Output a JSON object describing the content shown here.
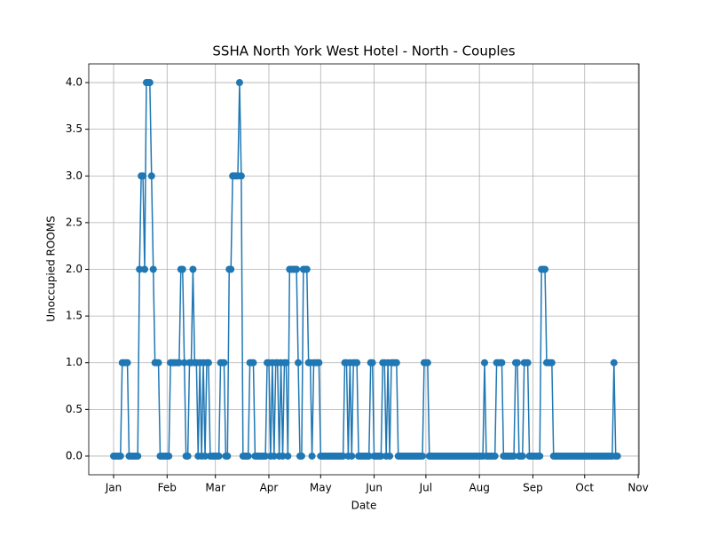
{
  "chart_data": {
    "type": "line",
    "title": "SSHA North York West Hotel - North - Couples",
    "xlabel": "Date",
    "ylabel": "Unoccupied ROOMS",
    "x": [
      0,
      1,
      2,
      3,
      4,
      5,
      6,
      7,
      8,
      9,
      10,
      11,
      12,
      13,
      14,
      15,
      16,
      17,
      18,
      19,
      20,
      21,
      22,
      23,
      24,
      25,
      26,
      27,
      28,
      29,
      30,
      31,
      32,
      33,
      34,
      35,
      36,
      37,
      38,
      39,
      40,
      41,
      42,
      43,
      44,
      45,
      46,
      47,
      48,
      49,
      50,
      51,
      52,
      53,
      54,
      55,
      56,
      57,
      58,
      59,
      60,
      61,
      62,
      63,
      64,
      65,
      66,
      67,
      68,
      69,
      70,
      71,
      72,
      73,
      74,
      75,
      76,
      77,
      78,
      79,
      80,
      81,
      82,
      83,
      84,
      85,
      86,
      87,
      88,
      89,
      90,
      91,
      92,
      93,
      94,
      95,
      96,
      97,
      98,
      99,
      100,
      101,
      102,
      103,
      104,
      105,
      106,
      107,
      108,
      109,
      110,
      111,
      112,
      113,
      114,
      115,
      116,
      117,
      118,
      119,
      120,
      121,
      122,
      123,
      124,
      125,
      126,
      127,
      128,
      129,
      130,
      131,
      132,
      133,
      134,
      135,
      136,
      137,
      138,
      139,
      140,
      141,
      142,
      143,
      144,
      145,
      146,
      147,
      148,
      149,
      150,
      151,
      152,
      153,
      154,
      155,
      156,
      157,
      158,
      159,
      160,
      161,
      162,
      163,
      164,
      165,
      166,
      167,
      168,
      169,
      170,
      171,
      172,
      173,
      174,
      175,
      176,
      177,
      178,
      179,
      180,
      181,
      182,
      183,
      184,
      185,
      186,
      187,
      188,
      189,
      190,
      191,
      192,
      193,
      194,
      195,
      196,
      197,
      198,
      199,
      200,
      201,
      202,
      203,
      204,
      205,
      206,
      207,
      208,
      209,
      210,
      211,
      212,
      213,
      214,
      215,
      216,
      217,
      218,
      219,
      220,
      221,
      222,
      223,
      224,
      225,
      226,
      227,
      228,
      229,
      230,
      231,
      232,
      233,
      234,
      235,
      236,
      237,
      238,
      239,
      240,
      241,
      242,
      243,
      244,
      245,
      246,
      247,
      248,
      249,
      250,
      251,
      252,
      253,
      254,
      255,
      256,
      257,
      258,
      259,
      260,
      261,
      262,
      263,
      264,
      265,
      266,
      267,
      268,
      269,
      270,
      271,
      272,
      273,
      274,
      275,
      276,
      277,
      278,
      279,
      280,
      281,
      282,
      283,
      284,
      285,
      286,
      287,
      288,
      289,
      290,
      291,
      292
    ],
    "series": [
      {
        "color": "#1f77b4",
        "values": [
          0,
          0,
          0,
          0,
          0,
          1,
          1,
          1,
          1,
          0,
          0,
          0,
          0,
          0,
          0,
          2,
          3,
          3,
          2,
          4,
          4,
          4,
          3,
          2,
          1,
          1,
          1,
          0,
          0,
          0,
          0,
          0,
          0,
          1,
          1,
          1,
          1,
          1,
          1,
          2,
          2,
          1,
          0,
          0,
          1,
          1,
          2,
          1,
          1,
          0,
          1,
          0,
          1,
          0,
          1,
          1,
          0,
          0,
          0,
          0,
          0,
          0,
          1,
          1,
          1,
          0,
          0,
          2,
          2,
          3,
          3,
          3,
          3,
          4,
          3,
          0,
          0,
          0,
          0,
          1,
          1,
          1,
          0,
          0,
          0,
          0,
          0,
          0,
          0,
          1,
          1,
          0,
          1,
          0,
          1,
          1,
          0,
          1,
          0,
          1,
          1,
          0,
          2,
          2,
          2,
          2,
          2,
          1,
          0,
          0,
          2,
          2,
          2,
          1,
          1,
          0,
          1,
          1,
          1,
          1,
          0,
          0,
          0,
          0,
          0,
          0,
          0,
          0,
          0,
          0,
          0,
          0,
          0,
          0,
          1,
          1,
          0,
          1,
          0,
          1,
          1,
          1,
          0,
          0,
          0,
          0,
          0,
          0,
          0,
          1,
          1,
          0,
          0,
          0,
          0,
          0,
          1,
          1,
          0,
          1,
          0,
          1,
          1,
          1,
          1,
          0,
          0,
          0,
          0,
          0,
          0,
          0,
          0,
          0,
          0,
          0,
          0,
          0,
          0,
          0,
          1,
          1,
          1,
          0,
          0,
          0,
          0,
          0,
          0,
          0,
          0,
          0,
          0,
          0,
          0,
          0,
          0,
          0,
          0,
          0,
          0,
          0,
          0,
          0,
          0,
          0,
          0,
          0,
          0,
          0,
          0,
          0,
          0,
          0,
          0,
          1,
          0,
          0,
          0,
          0,
          0,
          0,
          1,
          1,
          1,
          1,
          0,
          0,
          0,
          0,
          0,
          0,
          0,
          1,
          1,
          0,
          0,
          0,
          1,
          1,
          1,
          0,
          0,
          0,
          0,
          0,
          0,
          0,
          2,
          2,
          2,
          1,
          1,
          1,
          1,
          0,
          0,
          0,
          0,
          0,
          0,
          0,
          0,
          0,
          0,
          0,
          0,
          0,
          0,
          0,
          0,
          0,
          0,
          0,
          0,
          0,
          0,
          0,
          0,
          0,
          0,
          0,
          0,
          0,
          0,
          0,
          0,
          0,
          0,
          0,
          1,
          0,
          0
        ]
      }
    ],
    "xlim": [
      -14.4,
      304.5
    ],
    "xticks": [
      {
        "value": 0,
        "label": "Jan"
      },
      {
        "value": 31,
        "label": "Feb"
      },
      {
        "value": 59,
        "label": "Mar"
      },
      {
        "value": 90,
        "label": "Apr"
      },
      {
        "value": 120,
        "label": "May"
      },
      {
        "value": 151,
        "label": "Jun"
      },
      {
        "value": 181,
        "label": "Jul"
      },
      {
        "value": 212,
        "label": "Aug"
      },
      {
        "value": 243,
        "label": "Sep"
      },
      {
        "value": 273,
        "label": "Oct"
      },
      {
        "value": 304,
        "label": "Nov"
      }
    ],
    "ylim": [
      -0.2,
      4.2
    ],
    "yticks": [
      {
        "value": 0,
        "label": "0.0"
      },
      {
        "value": 0.5,
        "label": "0.5"
      },
      {
        "value": 1,
        "label": "1.0"
      },
      {
        "value": 1.5,
        "label": "1.5"
      },
      {
        "value": 2,
        "label": "2.0"
      },
      {
        "value": 2.5,
        "label": "2.5"
      },
      {
        "value": 3,
        "label": "3.0"
      },
      {
        "value": 3.5,
        "label": "3.5"
      },
      {
        "value": 4,
        "label": "4.0"
      }
    ],
    "grid": true
  }
}
